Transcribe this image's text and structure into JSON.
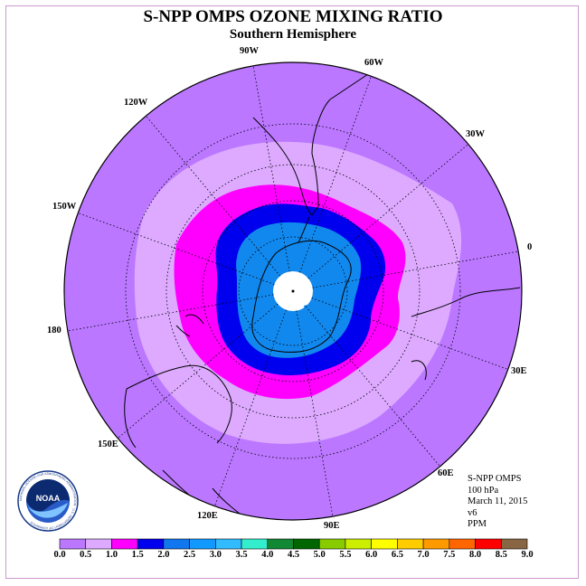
{
  "title": "S-NPP OMPS OZONE MIXING RATIO",
  "subtitle": "Southern Hemisphere",
  "info": {
    "instrument": "S-NPP OMPS",
    "level": "100 hPa",
    "date": "March 11, 2015",
    "version": "v6",
    "units": "PPM"
  },
  "logo": {
    "text": "NOAA",
    "ring_text": "NATIONAL OCEANIC AND ATMOSPHERIC ADMINISTRATION · U.S. DEPARTMENT OF COMMERCE"
  },
  "longitude_labels": [
    "90W",
    "60W",
    "30W",
    "0",
    "30E",
    "60E",
    "90E",
    "120E",
    "150E",
    "180",
    "150W",
    "120W"
  ],
  "colorbar": {
    "ticks": [
      "0.0",
      "0.5",
      "1.0",
      "1.5",
      "2.0",
      "2.5",
      "3.0",
      "3.5",
      "4.0",
      "4.5",
      "5.0",
      "5.5",
      "6.0",
      "6.5",
      "7.0",
      "7.5",
      "8.0",
      "8.5",
      "9.0"
    ],
    "colors": [
      "#bb77ff",
      "#ddaaff",
      "#ff00ff",
      "#0000ee",
      "#1177ee",
      "#1199ff",
      "#33bbff",
      "#33eecc",
      "#118833",
      "#006600",
      "#88cc00",
      "#ccee00",
      "#ffff00",
      "#ffcc00",
      "#ff9900",
      "#ff6600",
      "#ff0000",
      "#886644"
    ]
  },
  "map_data": {
    "projection": "south polar stereographic",
    "bands_ppm": [
      "0.0-0.5",
      "0.5-1.0",
      "1.0-1.5",
      "1.5-2.0",
      "2.0-2.5",
      "2.5-3.0"
    ]
  }
}
